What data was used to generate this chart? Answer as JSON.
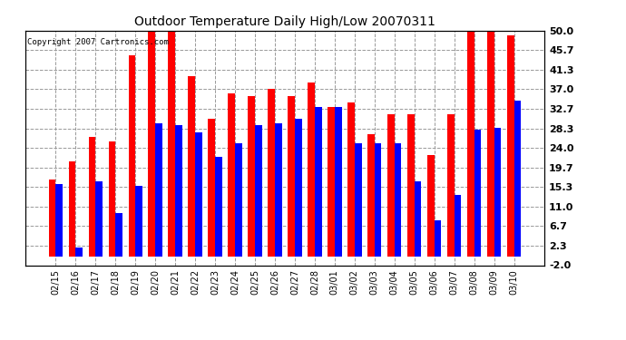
{
  "title": "Outdoor Temperature Daily High/Low 20070311",
  "copyright": "Copyright 2007 Cartronics.com",
  "dates": [
    "02/15",
    "02/16",
    "02/17",
    "02/18",
    "02/19",
    "02/20",
    "02/21",
    "02/22",
    "02/23",
    "02/24",
    "02/25",
    "02/26",
    "02/27",
    "02/28",
    "03/01",
    "03/02",
    "03/03",
    "03/04",
    "03/05",
    "03/06",
    "03/07",
    "03/08",
    "03/09",
    "03/10"
  ],
  "highs": [
    17.0,
    21.0,
    26.5,
    25.5,
    44.5,
    50.0,
    50.0,
    40.0,
    30.5,
    36.0,
    35.5,
    37.0,
    35.5,
    38.5,
    33.0,
    34.0,
    27.0,
    31.5,
    31.5,
    22.5,
    31.5,
    50.0,
    50.0,
    49.0
  ],
  "lows": [
    16.0,
    2.0,
    16.5,
    9.5,
    15.5,
    29.5,
    29.0,
    27.5,
    22.0,
    25.0,
    29.0,
    29.5,
    30.5,
    33.0,
    33.0,
    25.0,
    25.0,
    25.0,
    16.5,
    8.0,
    13.5,
    28.0,
    28.5,
    34.5
  ],
  "yticks": [
    -2.0,
    2.3,
    6.7,
    11.0,
    15.3,
    19.7,
    24.0,
    28.3,
    32.7,
    37.0,
    41.3,
    45.7,
    50.0
  ],
  "ylim": [
    -2.0,
    50.0
  ],
  "high_color": "#ff0000",
  "low_color": "#0000ff",
  "bg_color": "#ffffff",
  "grid_color": "#999999",
  "bar_width": 0.35
}
